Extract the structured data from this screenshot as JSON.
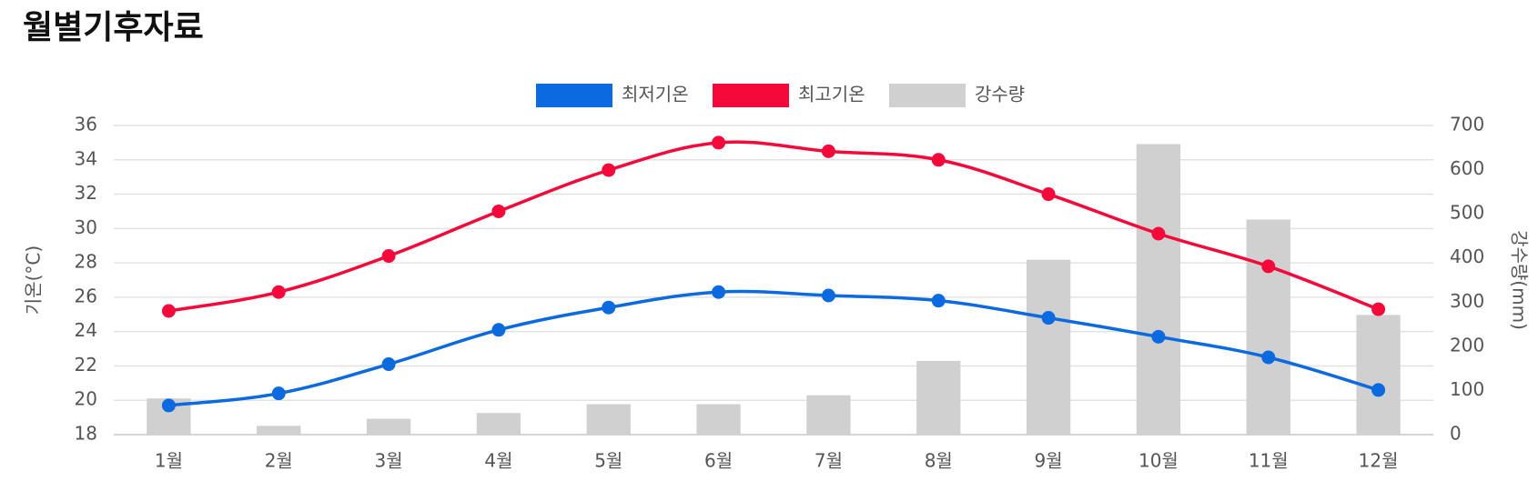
{
  "title": "월별기후자료",
  "chart_data": {
    "type": "combo",
    "categories": [
      "1월",
      "2월",
      "3월",
      "4월",
      "5월",
      "6월",
      "7월",
      "8월",
      "9월",
      "10월",
      "11월",
      "12월"
    ],
    "series": [
      {
        "name": "최저기온",
        "type": "line",
        "color": "#0b6ae0",
        "values": [
          19.7,
          20.4,
          22.1,
          24.1,
          25.4,
          26.3,
          26.1,
          25.8,
          24.8,
          23.7,
          22.5,
          20.6
        ]
      },
      {
        "name": "최고기온",
        "type": "line",
        "color": "#f5093a",
        "values": [
          25.2,
          26.3,
          28.4,
          31.0,
          33.4,
          35.0,
          34.5,
          34.0,
          32.0,
          29.7,
          27.8,
          25.3
        ]
      },
      {
        "name": "강수량",
        "type": "bar",
        "axis": "y2",
        "color": "#d0d0d0",
        "values": [
          82,
          20,
          36,
          49,
          69,
          69,
          89,
          167,
          396,
          658,
          487,
          271
        ]
      }
    ],
    "ylabel": "기온(°C)",
    "y2label": "강수량(mm)",
    "ylim": [
      18,
      36
    ],
    "yticks": [
      18,
      20,
      22,
      24,
      26,
      28,
      30,
      32,
      34,
      36
    ],
    "y2lim": [
      0,
      700
    ],
    "y2ticks": [
      0,
      100,
      200,
      300,
      400,
      500,
      600,
      700
    ],
    "grid": true,
    "legend": "top"
  }
}
